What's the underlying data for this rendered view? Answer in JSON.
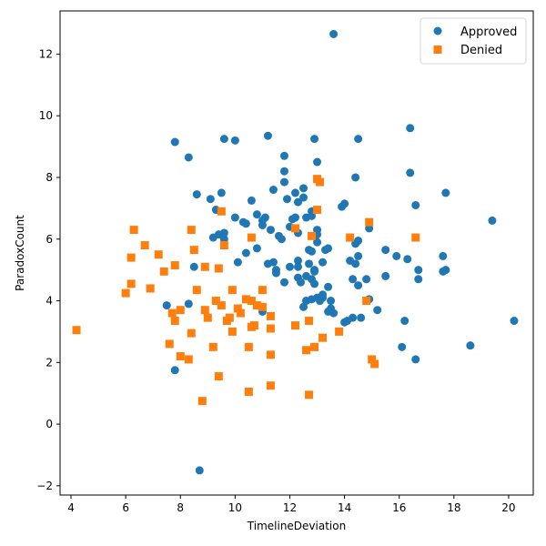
{
  "chart_data": {
    "type": "scatter",
    "xlabel": "TimelineDeviation",
    "ylabel": "ParadoxCount",
    "xlim": [
      3.6,
      20.9
    ],
    "ylim": [
      -2.3,
      13.4
    ],
    "xticks": [
      4,
      6,
      8,
      10,
      12,
      14,
      16,
      18,
      20
    ],
    "yticks": [
      -2,
      0,
      2,
      4,
      6,
      8,
      10,
      12
    ],
    "grid": false,
    "legend_position": "top-right",
    "series": [
      {
        "name": "Approved",
        "marker": "circle",
        "color": "#1f77b4",
        "points": [
          [
            7.8,
            9.15
          ],
          [
            8.3,
            8.65
          ],
          [
            11.2,
            9.35
          ],
          [
            9.6,
            9.25
          ],
          [
            10.0,
            9.2
          ],
          [
            12.9,
            9.25
          ],
          [
            13.6,
            12.65
          ],
          [
            14.5,
            9.25
          ],
          [
            16.4,
            9.6
          ],
          [
            16.4,
            8.15
          ],
          [
            13.0,
            8.5
          ],
          [
            11.8,
            8.7
          ],
          [
            11.8,
            8.2
          ],
          [
            14.4,
            8.0
          ],
          [
            11.8,
            7.85
          ],
          [
            12.2,
            7.5
          ],
          [
            11.4,
            7.6
          ],
          [
            12.5,
            7.65
          ],
          [
            8.6,
            7.45
          ],
          [
            9.5,
            7.5
          ],
          [
            17.7,
            7.5
          ],
          [
            9.1,
            7.3
          ],
          [
            9.3,
            6.95
          ],
          [
            10.6,
            7.25
          ],
          [
            11.9,
            7.3
          ],
          [
            12.3,
            7.2
          ],
          [
            12.5,
            7.35
          ],
          [
            13.9,
            7.05
          ],
          [
            14.0,
            7.15
          ],
          [
            16.6,
            7.1
          ],
          [
            9.2,
            6.05
          ],
          [
            9.4,
            6.15
          ],
          [
            9.6,
            6.0
          ],
          [
            9.6,
            6.2
          ],
          [
            10.0,
            6.7
          ],
          [
            10.3,
            6.55
          ],
          [
            10.4,
            6.5
          ],
          [
            10.8,
            6.8
          ],
          [
            11.0,
            6.6
          ],
          [
            11.1,
            6.7
          ],
          [
            11.3,
            6.3
          ],
          [
            11.0,
            6.45
          ],
          [
            11.6,
            6.1
          ],
          [
            11.7,
            6.0
          ],
          [
            12.1,
            6.65
          ],
          [
            12.2,
            6.7
          ],
          [
            12.6,
            6.7
          ],
          [
            12.8,
            6.9
          ],
          [
            12.8,
            6.75
          ],
          [
            13.0,
            6.3
          ],
          [
            12.0,
            6.4
          ],
          [
            12.3,
            6.2
          ],
          [
            13.0,
            6.15
          ],
          [
            13.0,
            5.9
          ],
          [
            14.4,
            5.85
          ],
          [
            14.5,
            5.95
          ],
          [
            14.9,
            6.35
          ],
          [
            10.4,
            5.55
          ],
          [
            10.8,
            5.7
          ],
          [
            12.7,
            5.65
          ],
          [
            12.8,
            5.6
          ],
          [
            13.3,
            5.65
          ],
          [
            13.4,
            5.7
          ],
          [
            15.5,
            5.65
          ],
          [
            15.9,
            5.45
          ],
          [
            14.2,
            5.3
          ],
          [
            14.4,
            5.2
          ],
          [
            14.5,
            5.45
          ],
          [
            16.3,
            5.35
          ],
          [
            17.6,
            5.45
          ],
          [
            10.1,
            5.25
          ],
          [
            11.2,
            5.2
          ],
          [
            11.4,
            5.25
          ],
          [
            12.0,
            5.1
          ],
          [
            12.3,
            5.3
          ],
          [
            12.3,
            5.1
          ],
          [
            12.7,
            5.2
          ],
          [
            13.2,
            5.25
          ],
          [
            8.5,
            5.1
          ],
          [
            11.5,
            4.9
          ],
          [
            11.5,
            5.0
          ],
          [
            12.9,
            5.0
          ],
          [
            12.9,
            4.95
          ],
          [
            16.7,
            5.0
          ],
          [
            17.7,
            5.0
          ],
          [
            17.6,
            4.95
          ],
          [
            11.8,
            4.6
          ],
          [
            12.3,
            4.75
          ],
          [
            12.4,
            4.6
          ],
          [
            12.6,
            4.8
          ],
          [
            12.8,
            4.7
          ],
          [
            12.9,
            4.55
          ],
          [
            13.4,
            4.45
          ],
          [
            14.3,
            4.7
          ],
          [
            14.5,
            4.5
          ],
          [
            14.8,
            4.7
          ],
          [
            15.5,
            4.8
          ],
          [
            16.7,
            4.7
          ],
          [
            12.6,
            4.0
          ],
          [
            12.8,
            4.05
          ],
          [
            13.0,
            4.1
          ],
          [
            13.2,
            4.1
          ],
          [
            13.2,
            4.2
          ],
          [
            13.1,
            4.0
          ],
          [
            13.5,
            4.0
          ],
          [
            13.5,
            3.75
          ],
          [
            13.4,
            3.65
          ],
          [
            13.6,
            3.6
          ],
          [
            14.0,
            3.3
          ],
          [
            14.1,
            3.35
          ],
          [
            14.3,
            3.45
          ],
          [
            14.6,
            3.45
          ],
          [
            14.9,
            4.05
          ],
          [
            15.2,
            3.7
          ],
          [
            16.2,
            3.35
          ],
          [
            20.2,
            3.35
          ],
          [
            7.5,
            3.85
          ],
          [
            8.3,
            3.9
          ],
          [
            12.5,
            3.8
          ],
          [
            11.0,
            3.65
          ],
          [
            7.8,
            1.75
          ],
          [
            16.1,
            2.5
          ],
          [
            16.6,
            2.1
          ],
          [
            18.6,
            2.55
          ],
          [
            19.4,
            6.6
          ],
          [
            8.7,
            -1.5
          ]
        ]
      },
      {
        "name": "Denied",
        "marker": "square",
        "color": "#ff7f0e",
        "points": [
          [
            4.2,
            3.05
          ],
          [
            6.0,
            4.25
          ],
          [
            6.2,
            4.55
          ],
          [
            6.2,
            5.4
          ],
          [
            6.3,
            6.3
          ],
          [
            6.7,
            5.8
          ],
          [
            6.9,
            4.4
          ],
          [
            7.2,
            5.5
          ],
          [
            7.4,
            4.95
          ],
          [
            7.7,
            3.6
          ],
          [
            7.8,
            3.35
          ],
          [
            7.8,
            5.15
          ],
          [
            8.0,
            3.7
          ],
          [
            8.0,
            2.2
          ],
          [
            8.3,
            2.1
          ],
          [
            8.4,
            2.95
          ],
          [
            8.4,
            6.3
          ],
          [
            8.5,
            5.65
          ],
          [
            8.6,
            4.35
          ],
          [
            8.9,
            5.1
          ],
          [
            8.9,
            3.7
          ],
          [
            9.0,
            3.45
          ],
          [
            9.2,
            2.5
          ],
          [
            9.3,
            4.0
          ],
          [
            9.4,
            5.05
          ],
          [
            9.4,
            1.55
          ],
          [
            9.5,
            3.85
          ],
          [
            9.5,
            6.9
          ],
          [
            9.6,
            5.8
          ],
          [
            9.7,
            3.35
          ],
          [
            9.8,
            3.45
          ],
          [
            9.9,
            4.35
          ],
          [
            9.9,
            3.0
          ],
          [
            10.1,
            3.75
          ],
          [
            10.2,
            3.6
          ],
          [
            10.4,
            4.05
          ],
          [
            10.5,
            2.5
          ],
          [
            10.6,
            4.0
          ],
          [
            10.6,
            3.15
          ],
          [
            10.6,
            6.05
          ],
          [
            10.7,
            3.2
          ],
          [
            10.8,
            3.85
          ],
          [
            11.0,
            3.8
          ],
          [
            11.0,
            4.35
          ],
          [
            11.3,
            3.5
          ],
          [
            11.3,
            3.1
          ],
          [
            11.3,
            2.25
          ],
          [
            11.3,
            1.25
          ],
          [
            10.5,
            1.05
          ],
          [
            8.8,
            0.75
          ],
          [
            12.2,
            3.2
          ],
          [
            12.2,
            6.35
          ],
          [
            12.6,
            2.4
          ],
          [
            12.7,
            3.35
          ],
          [
            12.9,
            2.5
          ],
          [
            12.8,
            6.1
          ],
          [
            13.0,
            6.95
          ],
          [
            13.0,
            7.95
          ],
          [
            13.1,
            7.85
          ],
          [
            13.2,
            2.8
          ],
          [
            13.8,
            3.0
          ],
          [
            14.2,
            6.05
          ],
          [
            14.8,
            4.0
          ],
          [
            14.9,
            6.55
          ],
          [
            15.0,
            2.1
          ],
          [
            15.1,
            1.95
          ],
          [
            16.6,
            6.05
          ],
          [
            7.6,
            2.6
          ],
          [
            12.7,
            0.95
          ]
        ]
      }
    ]
  }
}
